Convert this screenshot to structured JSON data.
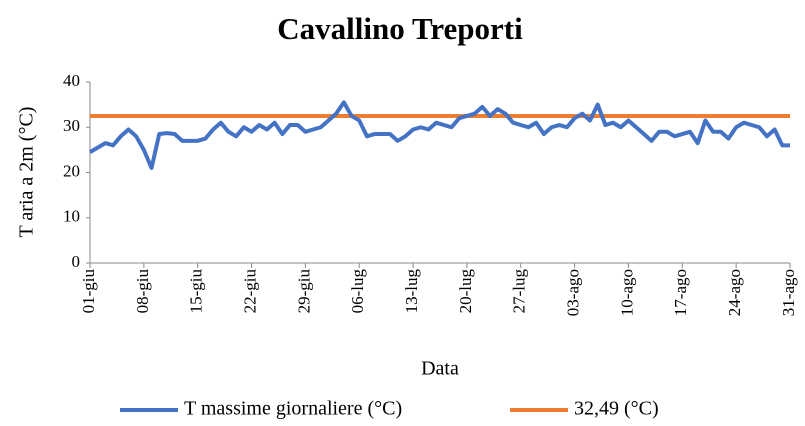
{
  "chart_data": {
    "type": "line",
    "title": "Cavallino Treporti",
    "xlabel": "Data",
    "ylabel": "T aria a 2m  (°C)",
    "categories": [
      "01-giu",
      null,
      null,
      null,
      null,
      null,
      null,
      "08-giu",
      null,
      null,
      null,
      null,
      null,
      null,
      "15-giu",
      null,
      null,
      null,
      null,
      null,
      null,
      "22-giu",
      null,
      null,
      null,
      null,
      null,
      null,
      "29-giu",
      null,
      null,
      null,
      null,
      null,
      null,
      "06-lug",
      null,
      null,
      null,
      null,
      null,
      null,
      "13-lug",
      null,
      null,
      null,
      null,
      null,
      null,
      "20-lug",
      null,
      null,
      null,
      null,
      null,
      null,
      "27-lug",
      null,
      null,
      null,
      null,
      null,
      null,
      "03-ago",
      null,
      null,
      null,
      null,
      null,
      null,
      "10-ago",
      null,
      null,
      null,
      null,
      null,
      null,
      "17-ago",
      null,
      null,
      null,
      null,
      null,
      null,
      "24-ago",
      null,
      null,
      null,
      null,
      null,
      null,
      "31-ago"
    ],
    "series": [
      {
        "name": "T massime giornaliere (°C)",
        "color": "#4472c4",
        "values": [
          24.5,
          25.5,
          26.5,
          26,
          28,
          29.5,
          28,
          25,
          21,
          28.5,
          28.7,
          28.5,
          27,
          27,
          27,
          27.5,
          29.5,
          31,
          29,
          28,
          30,
          29,
          30.5,
          29.5,
          31,
          28.5,
          30.5,
          30.5,
          29,
          29.5,
          30,
          31.5,
          33,
          35.5,
          32.5,
          31.5,
          28,
          28.5,
          28.5,
          28.5,
          27,
          28,
          29.5,
          30,
          29.5,
          31,
          30.5,
          30,
          32,
          32.5,
          33,
          34.5,
          32.5,
          34,
          33,
          31,
          30.5,
          30,
          31,
          28.5,
          30,
          30.5,
          30,
          32,
          33,
          31.5,
          35,
          30.5,
          31,
          30,
          31.5,
          30,
          28.5,
          27,
          29,
          29,
          28,
          28.5,
          29,
          26.5,
          31.5,
          29,
          29,
          27.5,
          30,
          31,
          30.5,
          30,
          28,
          29.5,
          26,
          26
        ]
      },
      {
        "name": "32,49 (°C)",
        "color": "#ed7d31",
        "values": [
          32.49,
          32.49,
          32.49,
          32.49,
          32.49,
          32.49,
          32.49,
          32.49,
          32.49,
          32.49,
          32.49,
          32.49,
          32.49,
          32.49,
          32.49,
          32.49,
          32.49,
          32.49,
          32.49,
          32.49,
          32.49,
          32.49,
          32.49,
          32.49,
          32.49,
          32.49,
          32.49,
          32.49,
          32.49,
          32.49,
          32.49,
          32.49,
          32.49,
          32.49,
          32.49,
          32.49,
          32.49,
          32.49,
          32.49,
          32.49,
          32.49,
          32.49,
          32.49,
          32.49,
          32.49,
          32.49,
          32.49,
          32.49,
          32.49,
          32.49,
          32.49,
          32.49,
          32.49,
          32.49,
          32.49,
          32.49,
          32.49,
          32.49,
          32.49,
          32.49,
          32.49,
          32.49,
          32.49,
          32.49,
          32.49,
          32.49,
          32.49,
          32.49,
          32.49,
          32.49,
          32.49,
          32.49,
          32.49,
          32.49,
          32.49,
          32.49,
          32.49,
          32.49,
          32.49,
          32.49,
          32.49,
          32.49,
          32.49,
          32.49,
          32.49,
          32.49,
          32.49,
          32.49,
          32.49,
          32.49,
          32.49,
          32.49
        ]
      }
    ],
    "ylim": [
      0,
      40
    ],
    "yticks": [
      0,
      10,
      20,
      30,
      40
    ],
    "grid": false,
    "legend": "bottom"
  }
}
